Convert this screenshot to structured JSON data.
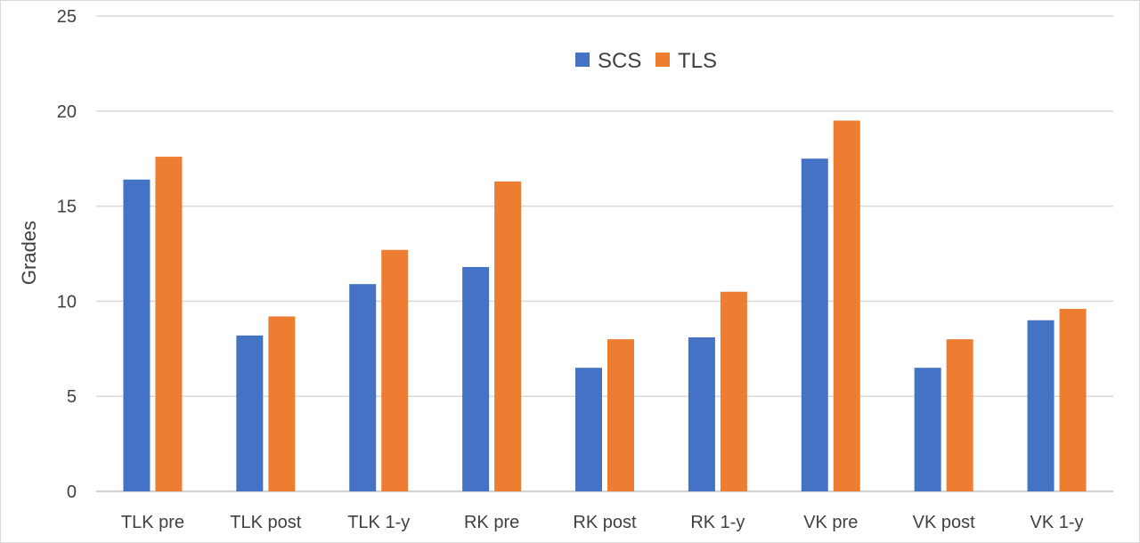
{
  "chart_data": {
    "type": "bar",
    "title": "",
    "xlabel": "",
    "ylabel": "Grades",
    "ylim": [
      0,
      25
    ],
    "y_ticks": [
      0,
      5,
      10,
      15,
      20,
      25
    ],
    "grid": true,
    "legend_position": "top-center",
    "categories": [
      "TLK pre",
      "TLK post",
      "TLK 1-y",
      "RK pre",
      "RK post",
      "RK 1-y",
      "VK pre",
      "VK post",
      "VK 1-y"
    ],
    "series": [
      {
        "name": "SCS",
        "color": "#4472C4",
        "values": [
          16.4,
          8.2,
          10.9,
          11.8,
          6.5,
          8.1,
          17.5,
          6.5,
          9.0
        ]
      },
      {
        "name": "TLS",
        "color": "#ED7D31",
        "values": [
          17.6,
          9.2,
          12.7,
          16.3,
          8.0,
          10.5,
          19.5,
          8.0,
          9.6
        ]
      }
    ]
  }
}
